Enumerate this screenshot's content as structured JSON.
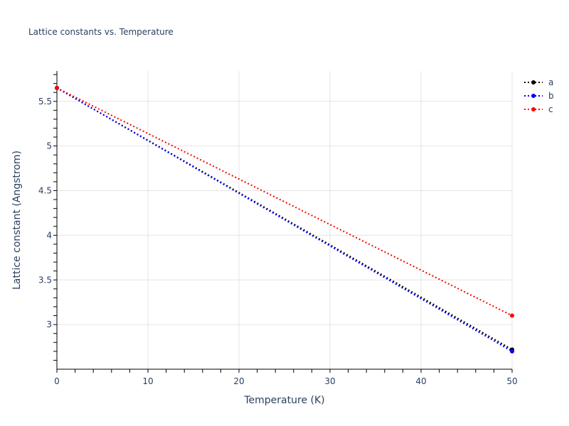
{
  "chart_data": {
    "type": "line",
    "title": "Lattice constants vs. Temperature",
    "xlabel": "Temperature (K)",
    "ylabel": "Lattice constant (Angstrom)",
    "xlim": [
      0,
      50
    ],
    "ylim": [
      2.5,
      5.84
    ],
    "x_ticks": [
      0,
      10,
      20,
      30,
      40,
      50
    ],
    "y_ticks": [
      3,
      3.5,
      4,
      4.5,
      5,
      5.5
    ],
    "y_tick_labels": [
      "3",
      "3.5",
      "4",
      "4.5",
      "5",
      "5.5"
    ],
    "grid": true,
    "legend_position": "top-right outside",
    "series": [
      {
        "name": "a",
        "color": "#000000",
        "dash": "dot",
        "x": [
          0,
          50
        ],
        "y": [
          5.65,
          2.72
        ]
      },
      {
        "name": "b",
        "color": "#0000ff",
        "dash": "dot",
        "x": [
          0,
          50
        ],
        "y": [
          5.65,
          2.7
        ]
      },
      {
        "name": "c",
        "color": "#ff0000",
        "dash": "dot",
        "x": [
          0,
          50
        ],
        "y": [
          5.65,
          3.1
        ]
      }
    ]
  },
  "legend": {
    "items": [
      {
        "label": "a",
        "color": "#000000"
      },
      {
        "label": "b",
        "color": "#0000ff"
      },
      {
        "label": "c",
        "color": "#ff0000"
      }
    ]
  }
}
